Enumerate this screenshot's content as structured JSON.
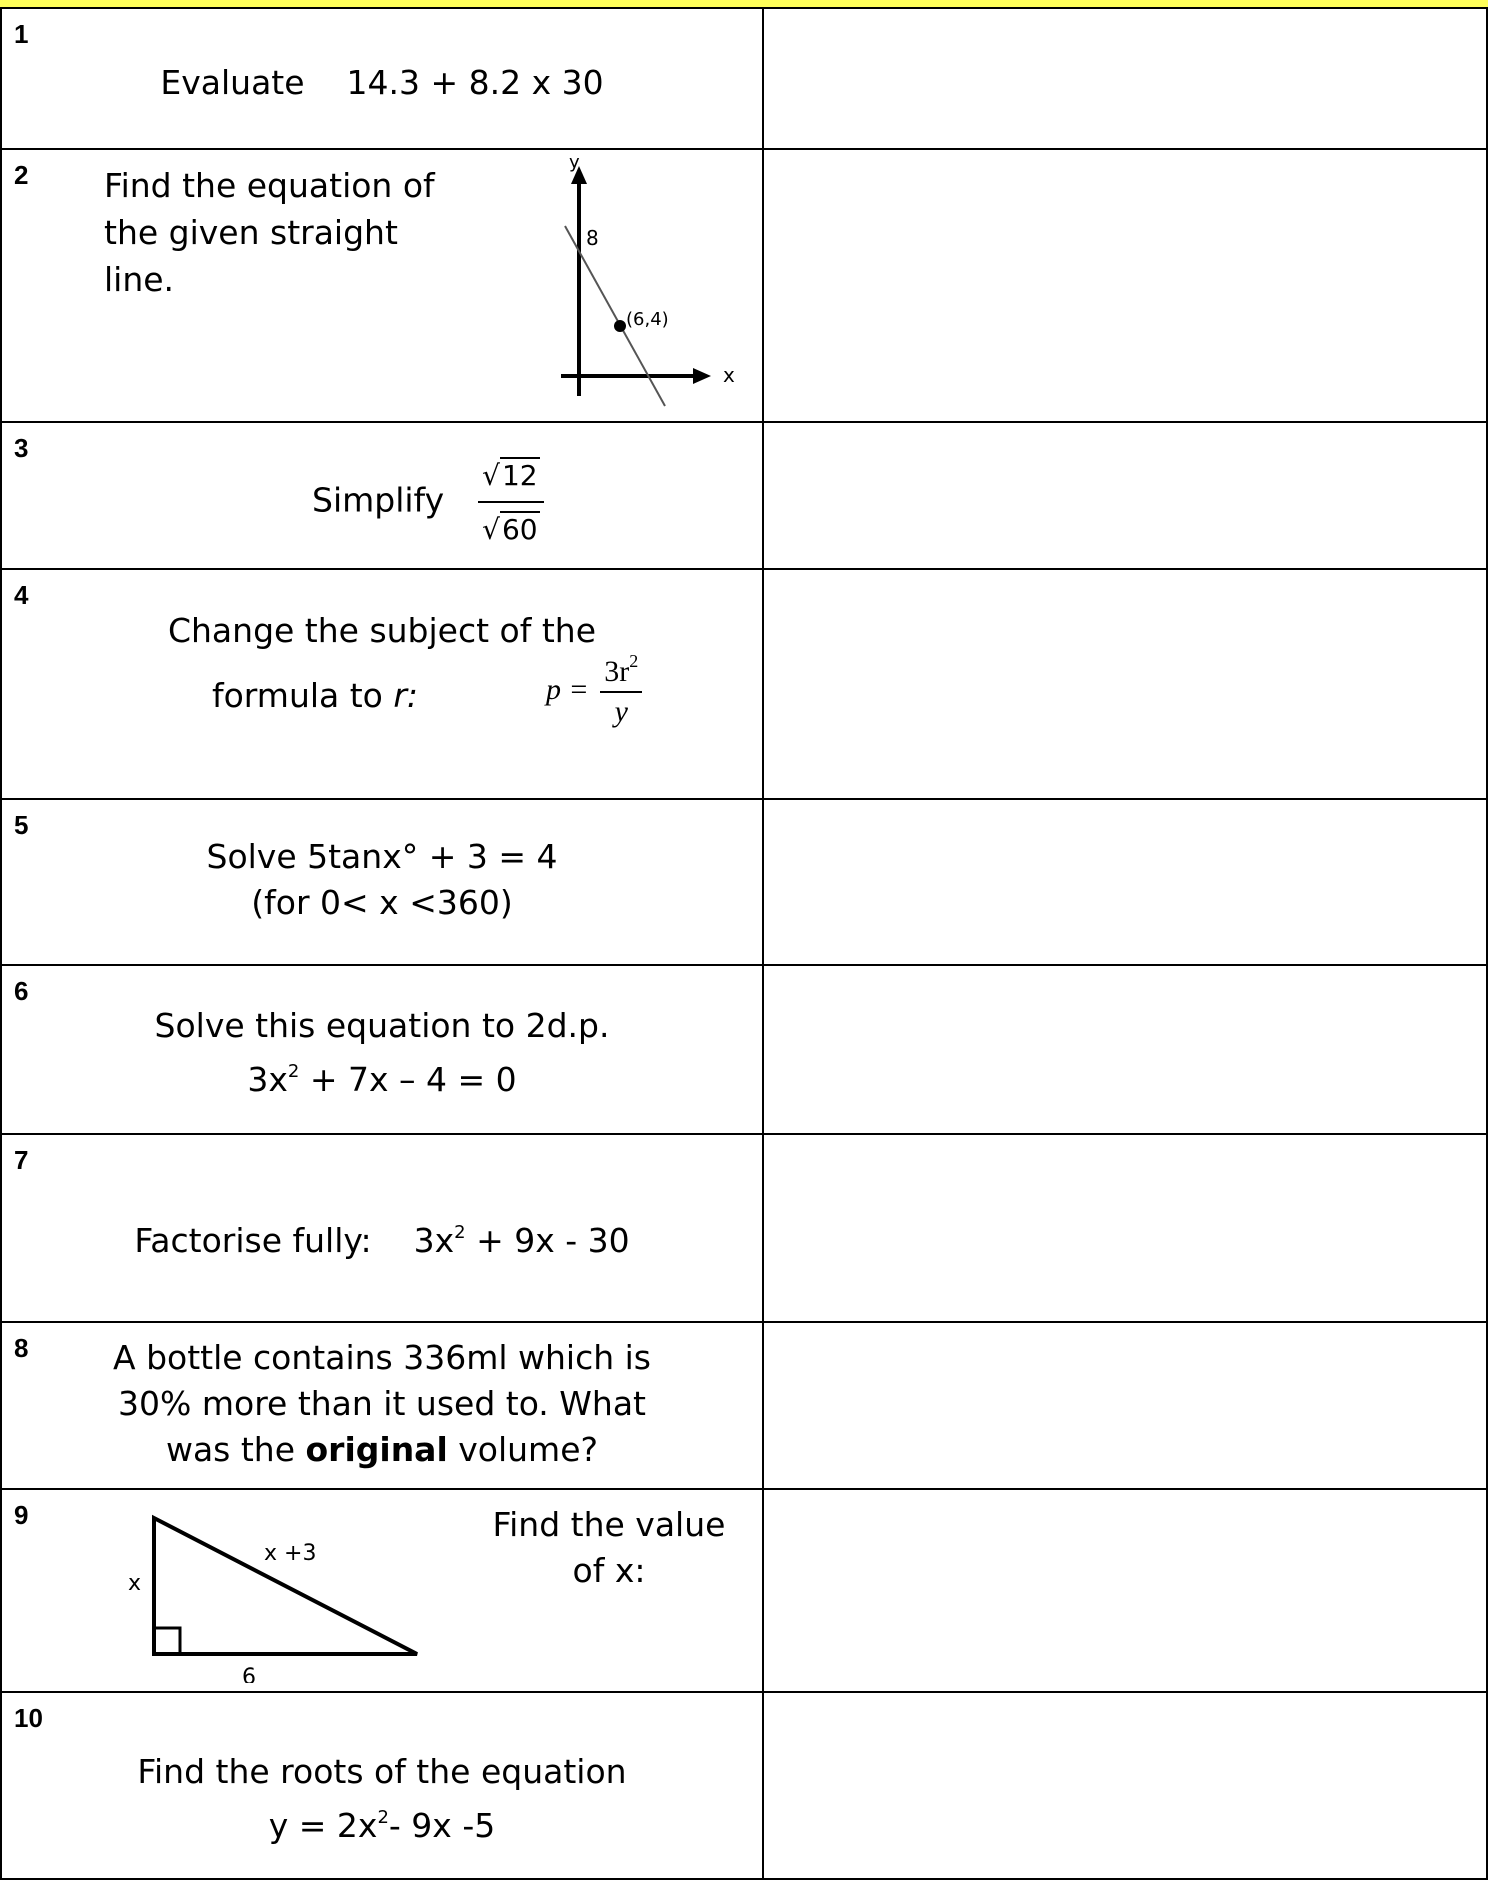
{
  "questions": [
    {
      "number": "1",
      "text": "Evaluate    14.3 + 8.2 x 30"
    },
    {
      "number": "2",
      "line1": "Find the equation of",
      "line2": "the given straight",
      "line3": "line.",
      "graph": {
        "axis_x": "x",
        "axis_y": "y",
        "intercept_label": "8",
        "point_label": "(6,4)"
      }
    },
    {
      "number": "3",
      "word": "Simplify",
      "numerator": "12",
      "denominator": "60"
    },
    {
      "number": "4",
      "line1": "Change the subject of the",
      "line2": "formula to ",
      "variable": "r:",
      "formula_lhs": "p =",
      "formula_num": "3r",
      "formula_exp": "2",
      "formula_den": "y"
    },
    {
      "number": "5",
      "line1": "Solve 5tanx° + 3 = 4",
      "line2": "(for 0< x <360)"
    },
    {
      "number": "6",
      "line1": "Solve this equation to 2d.p.",
      "line2_a": "3x",
      "line2_sup": "2",
      "line2_b": " + 7x – 4 = 0"
    },
    {
      "number": "7",
      "lead": "Factorise fully:    3x",
      "sup": "2",
      "rest": " + 9x - 30"
    },
    {
      "number": "8",
      "line1": "A bottle contains 336ml which is",
      "line2": "30% more than it used to. What",
      "line3_a": "was the ",
      "line3_bold": "original",
      "line3_b": " volume?"
    },
    {
      "number": "9",
      "line1": "Find the value",
      "line2": "of x:",
      "triangle": {
        "side_left": "x",
        "hypotenuse": "x +3",
        "base": "6"
      }
    },
    {
      "number": "10",
      "line1": "Find the roots of the equation",
      "line2_a": "y = 2x",
      "line2_sup": "2",
      "line2_b": "- 9x -5"
    }
  ]
}
